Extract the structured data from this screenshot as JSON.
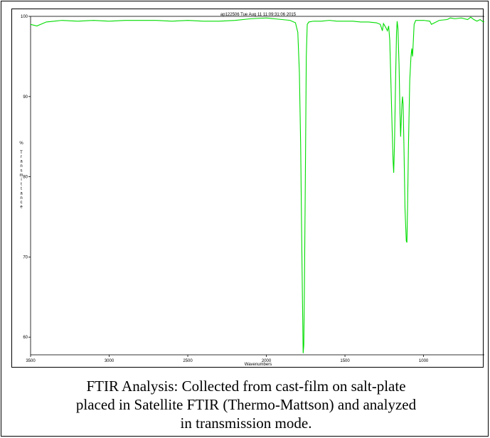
{
  "chart_data": {
    "type": "line",
    "title": "ap122506  Tue Aug 11 11:09:31:06 2015",
    "xlabel": "Wavenumbers",
    "ylabel": "% Transmittance",
    "xlim": [
      3500,
      600
    ],
    "ylim": [
      57.8,
      100
    ],
    "xticks": [
      "3500",
      "3000",
      "2500",
      "2000",
      "1500",
      "1000"
    ],
    "xtick_values": [
      3500,
      3000,
      2500,
      2000,
      1500,
      1000
    ],
    "yticks": [
      "100",
      "90",
      "80",
      "70",
      "60"
    ],
    "ytick_values": [
      100,
      90,
      80,
      70,
      60
    ],
    "grid": false,
    "series": [
      {
        "color": "#00dd00",
        "points": [
          [
            3500,
            99.0
          ],
          [
            3460,
            98.8
          ],
          [
            3400,
            99.3
          ],
          [
            3350,
            99.4
          ],
          [
            3300,
            99.5
          ],
          [
            3200,
            99.4
          ],
          [
            3100,
            99.5
          ],
          [
            3000,
            99.4
          ],
          [
            2900,
            99.5
          ],
          [
            2800,
            99.5
          ],
          [
            2700,
            99.5
          ],
          [
            2600,
            99.4
          ],
          [
            2500,
            99.5
          ],
          [
            2400,
            99.4
          ],
          [
            2300,
            99.4
          ],
          [
            2200,
            99.5
          ],
          [
            2100,
            99.7
          ],
          [
            2000,
            99.8
          ],
          [
            1950,
            99.7
          ],
          [
            1900,
            99.6
          ],
          [
            1850,
            99.5
          ],
          [
            1815,
            99.2
          ],
          [
            1800,
            98.0
          ],
          [
            1790,
            93.0
          ],
          [
            1782,
            84.0
          ],
          [
            1775,
            72.0
          ],
          [
            1770,
            64.0
          ],
          [
            1766,
            58.0
          ],
          [
            1762,
            59.0
          ],
          [
            1758,
            66.0
          ],
          [
            1752,
            80.0
          ],
          [
            1746,
            95.0
          ],
          [
            1740,
            99.0
          ],
          [
            1730,
            99.3
          ],
          [
            1700,
            99.4
          ],
          [
            1650,
            99.4
          ],
          [
            1600,
            99.5
          ],
          [
            1550,
            99.4
          ],
          [
            1500,
            99.4
          ],
          [
            1450,
            99.4
          ],
          [
            1400,
            99.3
          ],
          [
            1350,
            99.3
          ],
          [
            1300,
            99.2
          ],
          [
            1275,
            99.0
          ],
          [
            1262,
            98.2
          ],
          [
            1255,
            99.1
          ],
          [
            1240,
            98.6
          ],
          [
            1230,
            98.2
          ],
          [
            1222,
            98.8
          ],
          [
            1215,
            97.0
          ],
          [
            1208,
            92.0
          ],
          [
            1200,
            86.0
          ],
          [
            1194,
            82.0
          ],
          [
            1190,
            80.5
          ],
          [
            1185,
            84.0
          ],
          [
            1178,
            92.0
          ],
          [
            1172,
            98.0
          ],
          [
            1168,
            99.4
          ],
          [
            1163,
            98.5
          ],
          [
            1156,
            94.0
          ],
          [
            1150,
            88.0
          ],
          [
            1146,
            85.0
          ],
          [
            1142,
            87.0
          ],
          [
            1138,
            89.0
          ],
          [
            1134,
            90.0
          ],
          [
            1130,
            89.0
          ],
          [
            1125,
            84.0
          ],
          [
            1118,
            76.0
          ],
          [
            1110,
            72.0
          ],
          [
            1106,
            71.8
          ],
          [
            1102,
            76.0
          ],
          [
            1096,
            84.0
          ],
          [
            1088,
            92.0
          ],
          [
            1080,
            95.0
          ],
          [
            1075,
            96.0
          ],
          [
            1070,
            95.0
          ],
          [
            1065,
            97.0
          ],
          [
            1060,
            99.0
          ],
          [
            1050,
            99.5
          ],
          [
            1000,
            99.5
          ],
          [
            960,
            99.4
          ],
          [
            950,
            99.0
          ],
          [
            930,
            99.2
          ],
          [
            900,
            99.5
          ],
          [
            850,
            99.6
          ],
          [
            830,
            99.8
          ],
          [
            800,
            99.7
          ],
          [
            760,
            99.8
          ],
          [
            720,
            99.6
          ],
          [
            700,
            99.9
          ],
          [
            680,
            99.6
          ],
          [
            660,
            99.4
          ],
          [
            640,
            99.6
          ],
          [
            620,
            99.3
          ],
          [
            600,
            99.4
          ]
        ]
      }
    ]
  },
  "caption": {
    "line1": "FTIR Analysis: Collected from cast-film on salt-plate",
    "line2": "placed in Satellite FTIR (Thermo-Mattson) and analyzed",
    "line3": "in transmission mode."
  }
}
